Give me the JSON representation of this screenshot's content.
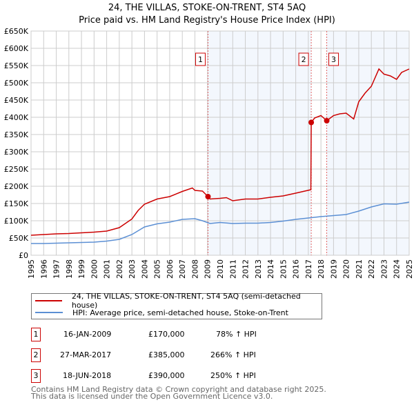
{
  "title": "24, THE VILLAS, STOKE-ON-TRENT, ST4 5AQ",
  "subtitle": "Price paid vs. HM Land Registry's House Price Index (HPI)",
  "chart_data": {
    "type": "line",
    "xlim": [
      1995,
      2025
    ],
    "ylim": [
      0,
      650000
    ],
    "yticks": [
      0,
      50000,
      100000,
      150000,
      200000,
      250000,
      300000,
      350000,
      400000,
      450000,
      500000,
      550000,
      600000,
      650000
    ],
    "ytick_labels": [
      "£0",
      "£50K",
      "£100K",
      "£150K",
      "£200K",
      "£250K",
      "£300K",
      "£350K",
      "£400K",
      "£450K",
      "£500K",
      "£550K",
      "£600K",
      "£650K"
    ],
    "xticks": [
      1995,
      1996,
      1997,
      1998,
      1999,
      2000,
      2001,
      2002,
      2003,
      2004,
      2005,
      2006,
      2007,
      2008,
      2009,
      2010,
      2011,
      2012,
      2013,
      2014,
      2015,
      2016,
      2017,
      2018,
      2019,
      2020,
      2021,
      2022,
      2023,
      2024,
      2025
    ],
    "grid": true,
    "series": [
      {
        "name": "24, THE VILLAS, STOKE-ON-TRENT, ST4 5AQ (semi-detached house)",
        "color": "#cc0000",
        "x": [
          1995,
          1996,
          1997,
          1998,
          1999,
          2000,
          2001,
          2002,
          2003,
          2003.5,
          2004,
          2005,
          2006,
          2007,
          2007.8,
          2008,
          2008.6,
          2009.04,
          2009.2,
          2010,
          2010.5,
          2011,
          2012,
          2013,
          2014,
          2015,
          2016,
          2017.2,
          2017.23,
          2017.5,
          2018,
          2018.46,
          2019,
          2019.5,
          2020,
          2020.6,
          2021,
          2021.5,
          2022,
          2022.6,
          2023,
          2023.5,
          2024,
          2024.4,
          2025
        ],
        "y": [
          58000,
          60000,
          62000,
          63000,
          65000,
          67000,
          70000,
          80000,
          105000,
          130000,
          148000,
          163000,
          170000,
          185000,
          195000,
          188000,
          186000,
          170000,
          163000,
          165000,
          167000,
          158000,
          163000,
          163000,
          168000,
          172000,
          180000,
          190000,
          385000,
          398000,
          405000,
          390000,
          405000,
          410000,
          412000,
          395000,
          445000,
          470000,
          490000,
          540000,
          525000,
          520000,
          510000,
          530000,
          540000
        ]
      },
      {
        "name": "HPI: Average price, semi-detached house, Stoke-on-Trent",
        "color": "#5b8fd4",
        "x": [
          1995,
          1996,
          1997,
          1998,
          1999,
          2000,
          2001,
          2002,
          2003,
          2004,
          2005,
          2006,
          2007,
          2008,
          2008.6,
          2009.2,
          2010,
          2011,
          2012,
          2013,
          2014,
          2015,
          2016,
          2017,
          2018,
          2019,
          2020,
          2021,
          2022,
          2023,
          2024,
          2025
        ],
        "y": [
          34000,
          34000,
          35000,
          36000,
          37000,
          38000,
          41000,
          46000,
          60000,
          82000,
          91000,
          96000,
          104000,
          106000,
          100000,
          92000,
          95000,
          92000,
          93000,
          93000,
          95000,
          99000,
          104000,
          108000,
          112000,
          115000,
          118000,
          128000,
          140000,
          149000,
          148000,
          154000
        ]
      }
    ],
    "sales": [
      {
        "label": "1",
        "x": 2009.04,
        "y": 170000,
        "date": "16-JAN-2009",
        "price": "£170,000",
        "hpi": "78% ↑ HPI"
      },
      {
        "label": "2",
        "x": 2017.23,
        "y": 385000,
        "date": "27-MAR-2017",
        "price": "£385,000",
        "hpi": "266% ↑ HPI"
      },
      {
        "label": "3",
        "x": 2018.46,
        "y": 390000,
        "date": "18-JUN-2018",
        "price": "£390,000",
        "hpi": "250% ↑ HPI"
      }
    ]
  },
  "footer": [
    "Contains HM Land Registry data © Crown copyright and database right 2025.",
    "This data is licensed under the Open Government Licence v3.0."
  ]
}
